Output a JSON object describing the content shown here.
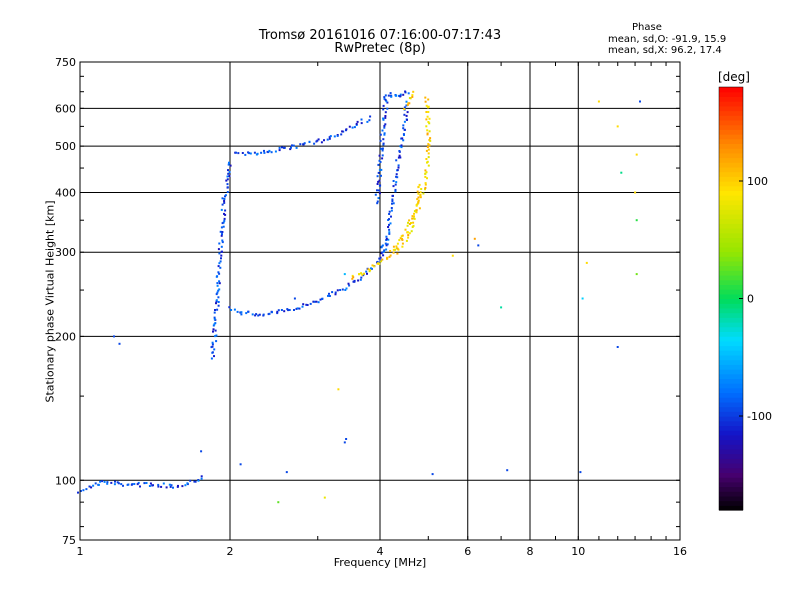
{
  "header": {
    "title_line1": "Tromsø 20161016 07:16:00-07:17:43",
    "title_line2": "RwPretec (8p)",
    "stats_title": "Phase",
    "stats_o": "mean, sd,O: -91.9, 15.9",
    "stats_x": "mean, sd,X:  96.2, 17.4"
  },
  "colorbar": {
    "unit": "[deg]",
    "ticks": [
      {
        "label": "100",
        "value": 100
      },
      {
        "label": "0",
        "value": 0
      },
      {
        "label": "-100",
        "value": -100
      }
    ],
    "range": [
      -180,
      180
    ]
  },
  "chart_data": {
    "type": "scatter",
    "xlabel": "Frequency [MHz]",
    "ylabel": "Stationary phase Virtual Height [km]",
    "x_scale": "log",
    "y_scale": "log",
    "xlim": [
      1,
      16
    ],
    "ylim": [
      75,
      750
    ],
    "x_ticks": [
      {
        "label": "1",
        "value": 1
      },
      {
        "label": "2",
        "value": 2
      },
      {
        "label": "4",
        "value": 4
      },
      {
        "label": "6",
        "value": 6
      },
      {
        "label": "8",
        "value": 8
      },
      {
        "label": "10",
        "value": 10
      },
      {
        "label": "16",
        "value": 16
      }
    ],
    "y_ticks": [
      {
        "label": "75",
        "value": 75
      },
      {
        "label": "100",
        "value": 100
      },
      {
        "label": "200",
        "value": 200
      },
      {
        "label": "300",
        "value": 300
      },
      {
        "label": "400",
        "value": 400
      },
      {
        "label": "500",
        "value": 500
      },
      {
        "label": "600",
        "value": 600
      },
      {
        "label": "750",
        "value": 750
      }
    ],
    "grid_x": [
      2,
      4,
      6,
      8,
      10
    ],
    "grid_y": [
      100,
      200,
      300,
      400,
      500,
      600
    ],
    "series": [
      {
        "polarity": "O",
        "color_value": -95,
        "traces": [
          {
            "x": [
              1.0,
              1.1,
              1.25,
              1.4,
              1.55,
              1.65,
              1.72,
              1.78
            ],
            "y": [
              95,
              99,
              98,
              98,
              97,
              99,
              100,
              103
            ]
          },
          {
            "x": [
              1.84,
              1.86,
              1.88,
              1.9,
              1.93,
              1.95,
              1.98,
              2.0,
              2.0
            ],
            "y": [
              180,
              195,
              230,
              280,
              340,
              390,
              420,
              440,
              470
            ]
          },
          {
            "x": [
              2.0,
              2.1,
              2.3,
              2.6,
              3.0,
              3.4,
              3.7,
              4.0,
              4.1
            ],
            "y": [
              230,
              224,
              222,
              226,
              238,
              252,
              268,
              290,
              320
            ]
          },
          {
            "x": [
              2.05,
              2.3,
              2.6,
              3.0,
              3.3,
              3.6,
              3.85
            ],
            "y": [
              480,
              485,
              495,
              510,
              530,
              555,
              575
            ]
          },
          {
            "x": [
              3.95,
              4.0,
              4.05,
              4.1,
              4.12
            ],
            "y": [
              380,
              450,
              530,
              600,
              650
            ]
          },
          {
            "x": [
              4.15,
              4.25,
              4.35,
              4.45,
              4.6
            ],
            "y": [
              640,
              640,
              640,
              640,
              650
            ]
          },
          {
            "x": [
              4.1,
              4.2,
              4.3,
              4.4,
              4.48,
              4.55
            ],
            "y": [
              300,
              360,
              430,
              500,
              560,
              620
            ]
          }
        ],
        "scatter": [
          [
            1.17,
            200
          ],
          [
            1.2,
            193
          ],
          [
            1.75,
            115
          ],
          [
            2.1,
            108
          ],
          [
            2.6,
            104
          ],
          [
            3.4,
            120
          ],
          [
            3.42,
            122
          ],
          [
            5.1,
            103
          ],
          [
            6.3,
            310
          ],
          [
            7.2,
            105
          ],
          [
            10.1,
            104
          ],
          [
            12.0,
            190
          ],
          [
            13.3,
            620
          ],
          [
            2.7,
            240
          ]
        ]
      },
      {
        "polarity": "X",
        "color_value": 95,
        "traces": [
          {
            "x": [
              3.5,
              3.8,
              4.0,
              4.3,
              4.6,
              4.8,
              4.95,
              5.0,
              5.0,
              4.95
            ],
            "y": [
              265,
              275,
              285,
              300,
              330,
              380,
              430,
              500,
              580,
              640
            ]
          },
          {
            "x": [
              4.2,
              4.5,
              4.7,
              4.85
            ],
            "y": [
              300,
              330,
              370,
              420
            ]
          },
          {
            "x": [
              4.5,
              4.6,
              4.65
            ],
            "y": [
              600,
              630,
              650
            ]
          }
        ],
        "scatter": [
          [
            11.0,
            620
          ],
          [
            12.0,
            550
          ],
          [
            13.1,
            480
          ],
          [
            13.0,
            400
          ],
          [
            5.6,
            295
          ],
          [
            10.4,
            285
          ],
          [
            3.3,
            155
          ]
        ]
      },
      {
        "polarity": "other",
        "traces": [],
        "scatter": [
          [
            2.5,
            90,
            25
          ],
          [
            3.1,
            92,
            80
          ],
          [
            7.0,
            230,
            -15
          ],
          [
            10.2,
            240,
            -40
          ],
          [
            13.1,
            350,
            10
          ],
          [
            13.1,
            270,
            30
          ],
          [
            12.2,
            440,
            -10
          ],
          [
            3.4,
            270,
            -50
          ],
          [
            6.2,
            320,
            120
          ]
        ]
      }
    ]
  }
}
